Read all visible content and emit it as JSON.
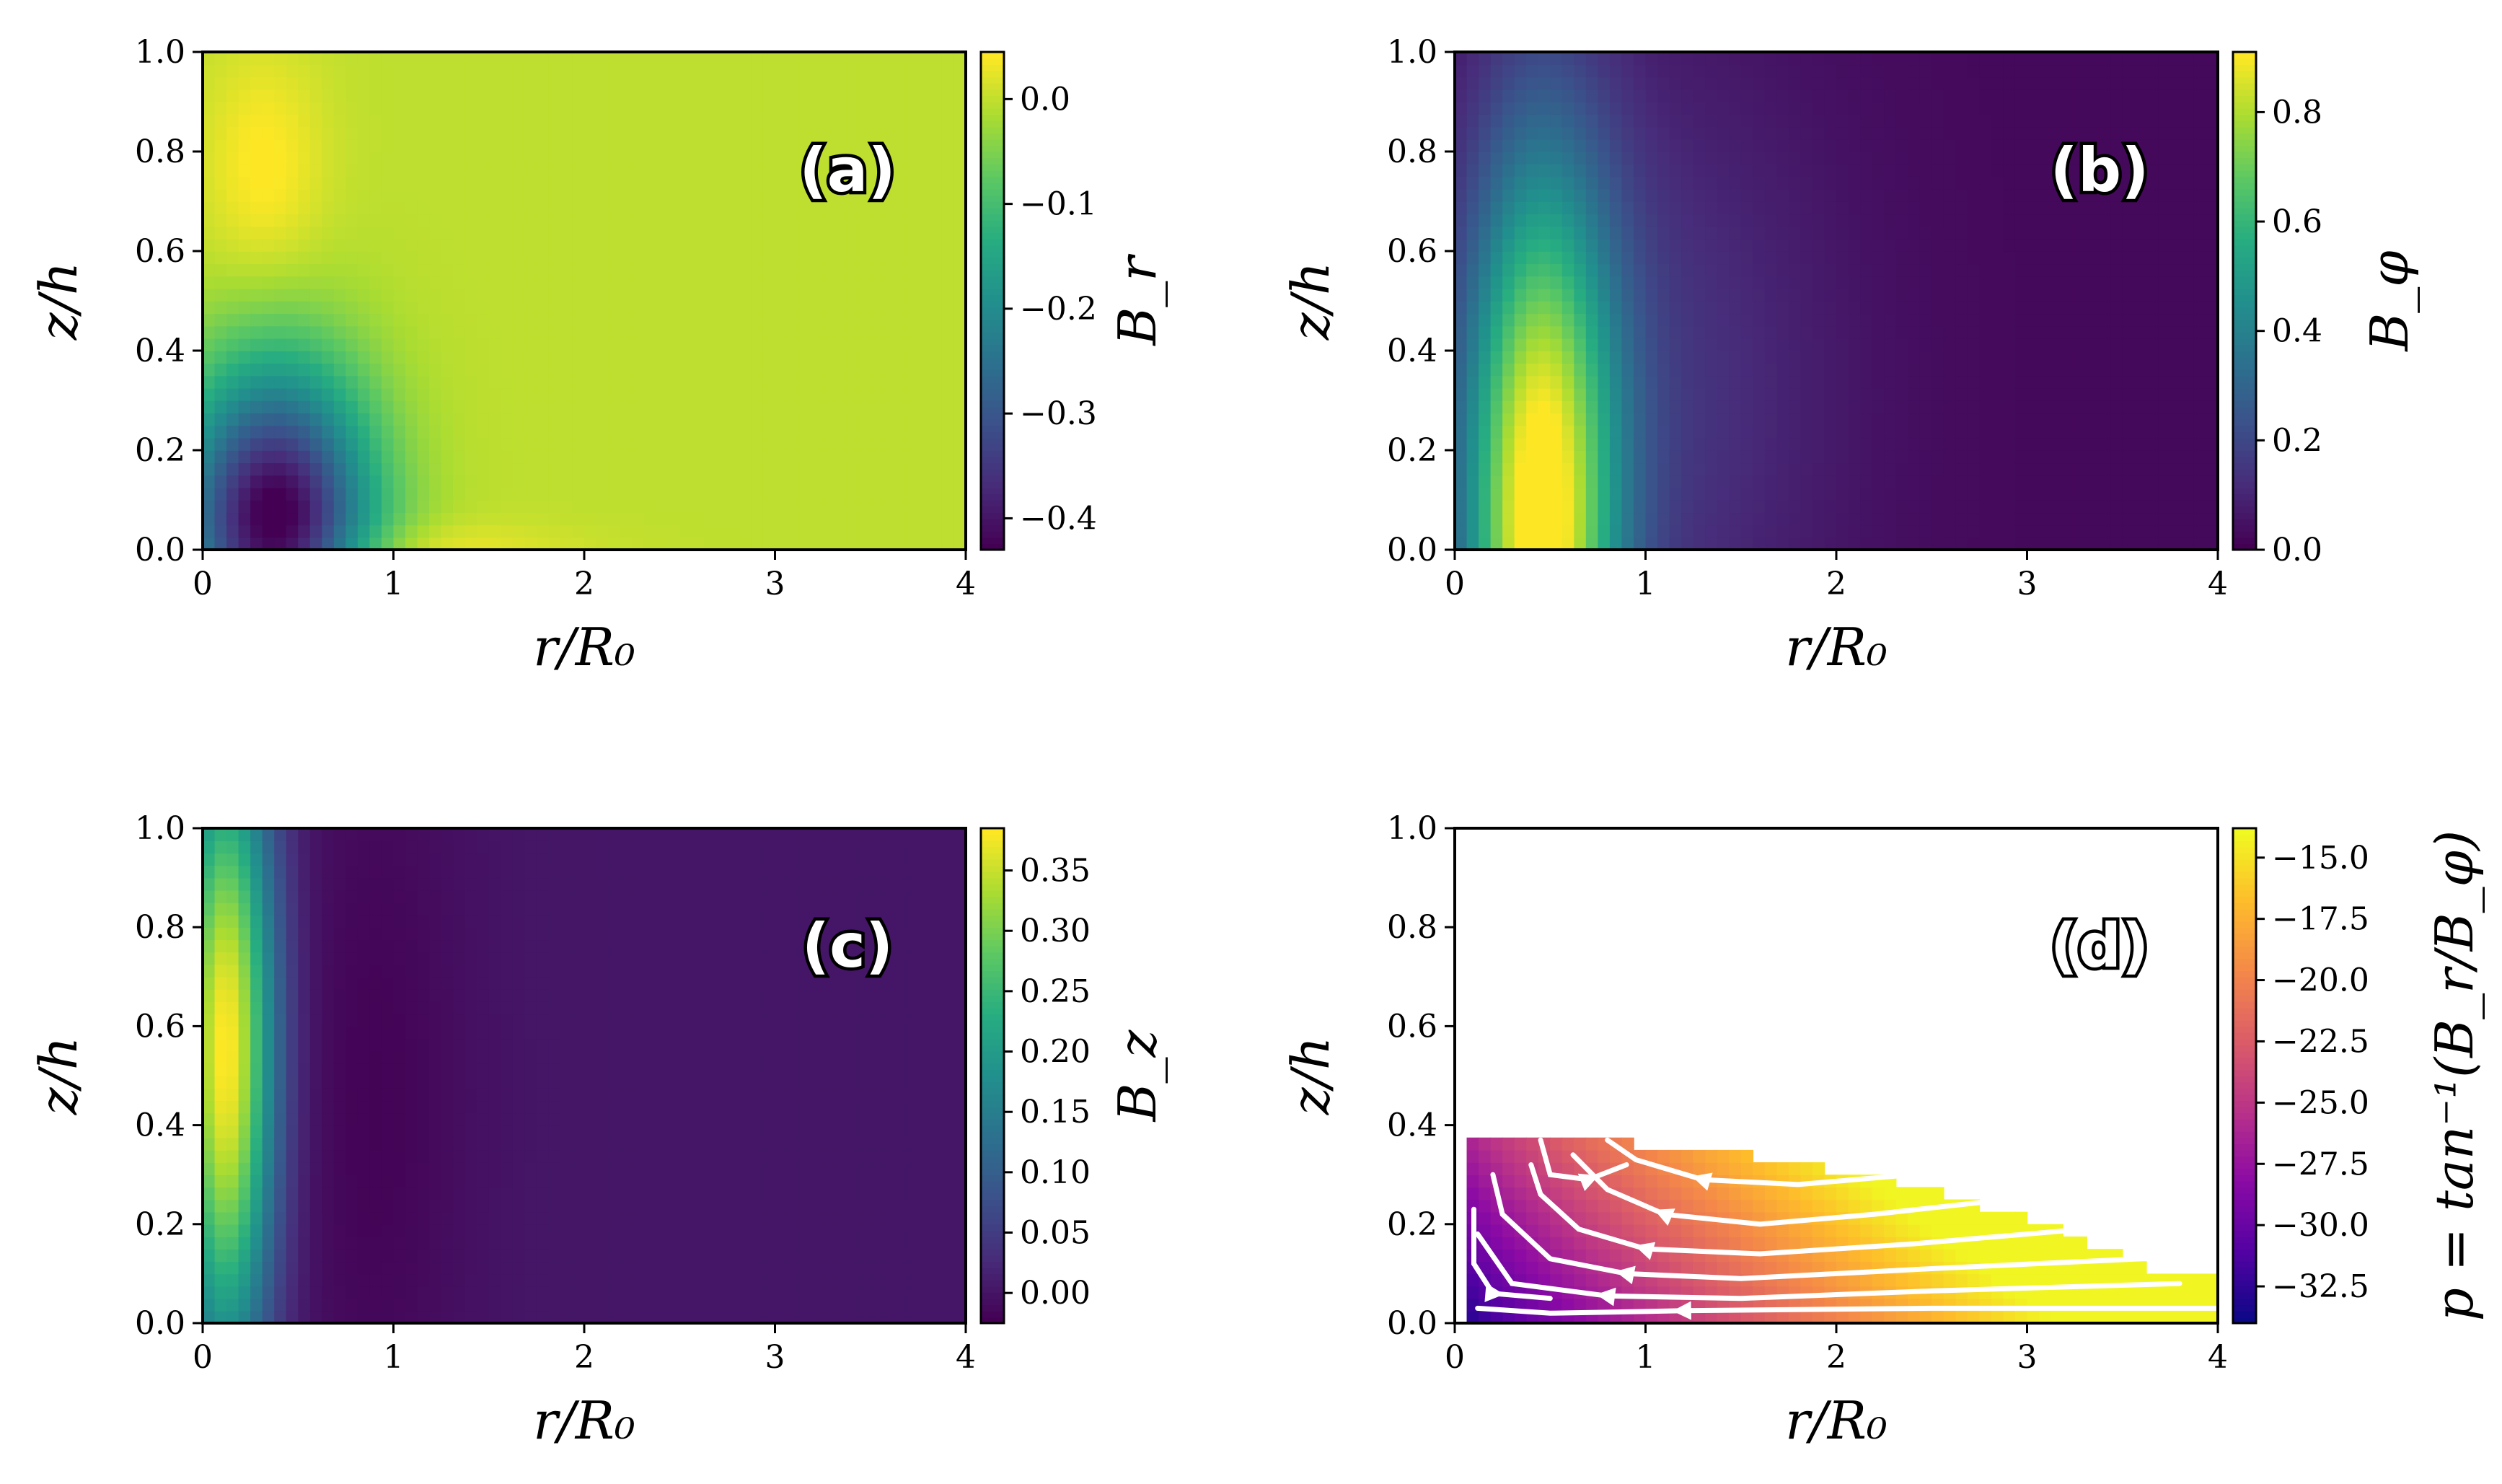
{
  "chart_data": [
    {
      "type": "heatmap",
      "panel_label": "(a)",
      "xlabel": "r/R₀",
      "ylabel": "z/h",
      "xlim": [
        0,
        4
      ],
      "ylim": [
        0,
        1
      ],
      "x_ticks": [
        "0",
        "1",
        "2",
        "3",
        "4"
      ],
      "y_ticks": [
        "0.0",
        "0.2",
        "0.4",
        "0.6",
        "0.8",
        "1.0"
      ],
      "colormap": "viridis",
      "colorbar": {
        "label": "B_r",
        "min": -0.43,
        "max": 0.045,
        "tick_values": [
          0.0,
          -0.1,
          -0.2,
          -0.3,
          -0.4
        ],
        "tick_labels": [
          "0.0",
          "−0.1",
          "−0.2",
          "−0.3",
          "−0.4"
        ]
      },
      "features": [
        {
          "kind": "blob",
          "r": 0.38,
          "z": 0.05,
          "sr": 0.35,
          "sz": 0.22,
          "amp": -0.45
        },
        {
          "kind": "blob",
          "r": 0.32,
          "z": 0.76,
          "sr": 0.22,
          "sz": 0.17,
          "amp": 0.05
        },
        {
          "kind": "blob",
          "r": 1.0,
          "z": 0.0,
          "sr": 0.6,
          "sz": 0.04,
          "amp": 0.04
        }
      ],
      "background_value": 0.0
    },
    {
      "type": "heatmap",
      "panel_label": "(b)",
      "xlabel": "r/R₀",
      "ylabel": "z/h",
      "xlim": [
        0,
        4
      ],
      "ylim": [
        0,
        1
      ],
      "x_ticks": [
        "0",
        "1",
        "2",
        "3",
        "4"
      ],
      "y_ticks": [
        "0.0",
        "0.2",
        "0.4",
        "0.6",
        "0.8",
        "1.0"
      ],
      "colormap": "viridis",
      "colorbar": {
        "label": "B_φ",
        "min": 0.0,
        "max": 0.91,
        "tick_values": [
          0.0,
          0.2,
          0.4,
          0.6,
          0.8
        ],
        "tick_labels": [
          "0.0",
          "0.2",
          "0.4",
          "0.6",
          "0.8"
        ]
      },
      "features": [
        {
          "kind": "blob",
          "r": 0.45,
          "z": 0.05,
          "sr": 0.28,
          "sz": 0.5,
          "amp": 0.9
        },
        {
          "kind": "blob",
          "r": 1.0,
          "z": 0.3,
          "sr": 0.7,
          "sz": 0.5,
          "amp": 0.12
        }
      ],
      "background_value": 0.02
    },
    {
      "type": "heatmap",
      "panel_label": "(c)",
      "xlabel": "r/R₀",
      "ylabel": "z/h",
      "xlim": [
        0,
        4
      ],
      "ylim": [
        0,
        1
      ],
      "x_ticks": [
        "0",
        "1",
        "2",
        "3",
        "4"
      ],
      "y_ticks": [
        "0.0",
        "0.2",
        "0.4",
        "0.6",
        "0.8",
        "1.0"
      ],
      "colormap": "viridis",
      "colorbar": {
        "label": "B_z",
        "min": -0.025,
        "max": 0.385,
        "tick_values": [
          0.35,
          0.3,
          0.25,
          0.2,
          0.15,
          0.1,
          0.05,
          0.0
        ],
        "tick_labels": [
          "0.35",
          "0.30",
          "0.25",
          "0.20",
          "0.15",
          "0.10",
          "0.05",
          "0.00"
        ]
      },
      "features": [
        {
          "kind": "blob",
          "r": 0.12,
          "z": 0.55,
          "sr": 0.18,
          "sz": 0.45,
          "amp": 0.39
        },
        {
          "kind": "blob",
          "r": 0.9,
          "z": 0.45,
          "sr": 0.35,
          "sz": 0.6,
          "amp": -0.022
        }
      ],
      "background_value": 0.0
    },
    {
      "type": "heatmap",
      "panel_label": "(d)",
      "xlabel": "r/R₀",
      "ylabel": "z/h",
      "xlim": [
        0,
        4
      ],
      "ylim": [
        0,
        1
      ],
      "x_ticks": [
        "0",
        "1",
        "2",
        "3",
        "4"
      ],
      "y_ticks": [
        "0.0",
        "0.2",
        "0.4",
        "0.6",
        "0.8",
        "1.0"
      ],
      "colormap": "plasma",
      "colorbar": {
        "label": "p = tan⁻¹(B_r/B_φ)",
        "min": -34.0,
        "max": -13.8,
        "tick_values": [
          -15.0,
          -17.5,
          -20.0,
          -22.5,
          -25.0,
          -27.5,
          -30.0,
          -32.5
        ],
        "tick_labels": [
          "−15.0",
          "−17.5",
          "−20.0",
          "−22.5",
          "−25.0",
          "−27.5",
          "−30.0",
          "−32.5"
        ]
      },
      "masked_boundary": [
        [
          0.08,
          0.385
        ],
        [
          0.6,
          0.385
        ],
        [
          1.0,
          0.36
        ],
        [
          1.5,
          0.34
        ],
        [
          2.0,
          0.31
        ],
        [
          2.5,
          0.27
        ],
        [
          3.0,
          0.21
        ],
        [
          3.5,
          0.14
        ],
        [
          3.7,
          0.1
        ],
        [
          4.0,
          0.09
        ],
        [
          4.0,
          0.0
        ],
        [
          0.08,
          0.0
        ]
      ],
      "value_range_shown": [
        -34,
        -14
      ],
      "streamlines": "white, flowing toward the axis (r → 0) near the bottom-left"
    }
  ]
}
